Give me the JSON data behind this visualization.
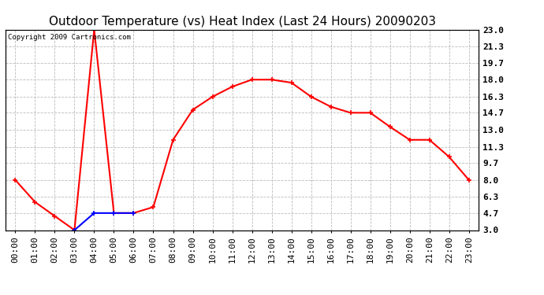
{
  "title": "Outdoor Temperature (vs) Heat Index (Last 24 Hours) 20090203",
  "copyright_text": "Copyright 2009 Cartronics.com",
  "x_labels": [
    "00:00",
    "01:00",
    "02:00",
    "03:00",
    "04:00",
    "05:00",
    "06:00",
    "07:00",
    "08:00",
    "09:00",
    "10:00",
    "11:00",
    "12:00",
    "13:00",
    "14:00",
    "15:00",
    "16:00",
    "17:00",
    "18:00",
    "19:00",
    "20:00",
    "21:00",
    "22:00",
    "23:00"
  ],
  "temp_data": [
    8.0,
    5.8,
    4.4,
    3.0,
    23.0,
    4.7,
    4.7,
    5.3,
    12.0,
    15.0,
    16.3,
    17.3,
    18.0,
    18.0,
    17.7,
    16.3,
    15.3,
    14.7,
    14.7,
    13.3,
    12.0,
    12.0,
    10.3,
    8.0
  ],
  "heat_data": [
    null,
    null,
    null,
    3.0,
    4.7,
    4.7,
    4.7,
    null,
    null,
    null,
    null,
    null,
    null,
    null,
    null,
    null,
    null,
    null,
    null,
    null,
    null,
    null,
    null,
    null
  ],
  "y_ticks": [
    3.0,
    4.7,
    6.3,
    8.0,
    9.7,
    11.3,
    13.0,
    14.7,
    16.3,
    18.0,
    19.7,
    21.3,
    23.0
  ],
  "ylim": [
    3.0,
    23.0
  ],
  "temp_color": "#ff0000",
  "heat_color": "#0000ff",
  "grid_color": "#bbbbbb",
  "bg_color": "#ffffff",
  "title_fontsize": 11,
  "axis_label_fontsize": 8
}
